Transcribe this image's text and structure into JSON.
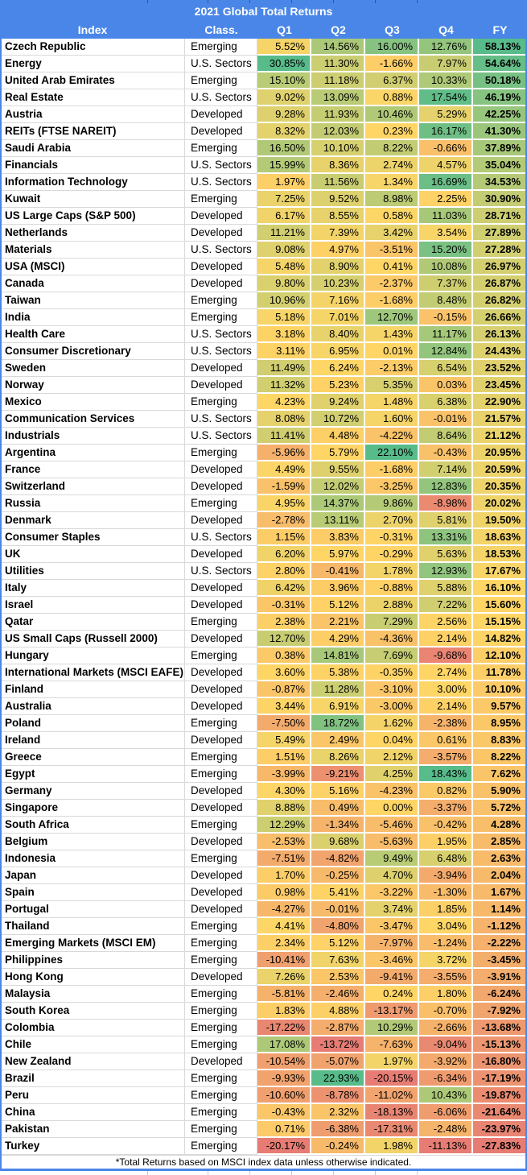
{
  "title": "2021 Global Total Returns",
  "footnote": "*Total Returns based on MSCI index data unless otherwise indicated.",
  "columns": [
    "Index",
    "Class.",
    "Q1",
    "Q2",
    "Q3",
    "Q4",
    "FY"
  ],
  "colors": {
    "header_bg": "#4A86E8",
    "header_text": "#FFFFFF",
    "table_border": "#4A86E8",
    "grid_line": "#D9D9D9",
    "scale_min_color": "#E67C73",
    "scale_mid_color": "#FFD666",
    "scale_max_color": "#57BB8A",
    "cell_text": "#000000"
  },
  "chart_data": {
    "type": "heatmap",
    "description": "Table of 2021 total returns by index, colored per-column on a red-yellow-green scale (min / median / max).",
    "columns": [
      "Index",
      "Class.",
      "Q1",
      "Q2",
      "Q3",
      "Q4",
      "FY"
    ],
    "value_format": "percent_2dp",
    "rows": [
      [
        "Czech Republic",
        "Emerging",
        5.52,
        14.56,
        16.0,
        12.76,
        58.13
      ],
      [
        "Energy",
        "U.S. Sectors",
        30.85,
        11.3,
        -1.66,
        7.97,
        54.64
      ],
      [
        "United Arab Emirates",
        "Emerging",
        15.1,
        11.18,
        6.37,
        10.33,
        50.18
      ],
      [
        "Real Estate",
        "U.S. Sectors",
        9.02,
        13.09,
        0.88,
        17.54,
        46.19
      ],
      [
        "Austria",
        "Developed",
        9.28,
        11.93,
        10.46,
        5.29,
        42.25
      ],
      [
        "REITs (FTSE NAREIT)",
        "Developed",
        8.32,
        12.03,
        0.23,
        16.17,
        41.3
      ],
      [
        "Saudi Arabia",
        "Emerging",
        16.5,
        10.1,
        8.22,
        -0.66,
        37.89
      ],
      [
        "Financials",
        "U.S. Sectors",
        15.99,
        8.36,
        2.74,
        4.57,
        35.04
      ],
      [
        "Information Technology",
        "U.S. Sectors",
        1.97,
        11.56,
        1.34,
        16.69,
        34.53
      ],
      [
        "Kuwait",
        "Emerging",
        7.25,
        9.52,
        8.98,
        2.25,
        30.9
      ],
      [
        "US Large Caps (S&P 500)",
        "Developed",
        6.17,
        8.55,
        0.58,
        11.03,
        28.71
      ],
      [
        "Netherlands",
        "Developed",
        11.21,
        7.39,
        3.42,
        3.54,
        27.89
      ],
      [
        "Materials",
        "U.S. Sectors",
        9.08,
        4.97,
        -3.51,
        15.2,
        27.28
      ],
      [
        "USA (MSCI)",
        "Developed",
        5.48,
        8.9,
        0.41,
        10.08,
        26.97
      ],
      [
        "Canada",
        "Developed",
        9.8,
        10.23,
        -2.37,
        7.37,
        26.87
      ],
      [
        "Taiwan",
        "Emerging",
        10.96,
        7.16,
        -1.68,
        8.48,
        26.82
      ],
      [
        "India",
        "Emerging",
        5.18,
        7.01,
        12.7,
        -0.15,
        26.66
      ],
      [
        "Health Care",
        "U.S. Sectors",
        3.18,
        8.4,
        1.43,
        11.17,
        26.13
      ],
      [
        "Consumer Discretionary",
        "U.S. Sectors",
        3.11,
        6.95,
        0.01,
        12.84,
        24.43
      ],
      [
        "Sweden",
        "Developed",
        11.49,
        6.24,
        -2.13,
        6.54,
        23.52
      ],
      [
        "Norway",
        "Developed",
        11.32,
        5.23,
        5.35,
        0.03,
        23.45
      ],
      [
        "Mexico",
        "Emerging",
        4.23,
        9.24,
        1.48,
        6.38,
        22.9
      ],
      [
        "Communication Services",
        "U.S. Sectors",
        8.08,
        10.72,
        1.6,
        -0.01,
        21.57
      ],
      [
        "Industrials",
        "U.S. Sectors",
        11.41,
        4.48,
        -4.22,
        8.64,
        21.12
      ],
      [
        "Argentina",
        "Emerging",
        -5.96,
        5.79,
        22.1,
        -0.43,
        20.95
      ],
      [
        "France",
        "Developed",
        4.49,
        9.55,
        -1.68,
        7.14,
        20.59
      ],
      [
        "Switzerland",
        "Developed",
        -1.59,
        12.02,
        -3.25,
        12.83,
        20.35
      ],
      [
        "Russia",
        "Emerging",
        4.95,
        14.37,
        9.86,
        -8.98,
        20.02
      ],
      [
        "Denmark",
        "Developed",
        -2.78,
        13.11,
        2.7,
        5.81,
        19.5
      ],
      [
        "Consumer Staples",
        "U.S. Sectors",
        1.15,
        3.83,
        -0.31,
        13.31,
        18.63
      ],
      [
        "UK",
        "Developed",
        6.2,
        5.97,
        -0.29,
        5.63,
        18.53
      ],
      [
        "Utilities",
        "U.S. Sectors",
        2.8,
        -0.41,
        1.78,
        12.93,
        17.67
      ],
      [
        "Italy",
        "Developed",
        6.42,
        3.96,
        -0.88,
        5.88,
        16.1
      ],
      [
        "Israel",
        "Developed",
        -0.31,
        5.12,
        2.88,
        7.22,
        15.6
      ],
      [
        "Qatar",
        "Emerging",
        2.38,
        2.21,
        7.29,
        2.56,
        15.15
      ],
      [
        "US Small Caps (Russell 2000)",
        "Developed",
        12.7,
        4.29,
        -4.36,
        2.14,
        14.82
      ],
      [
        "Hungary",
        "Emerging",
        0.38,
        14.81,
        7.69,
        -9.68,
        12.1
      ],
      [
        "International Markets (MSCI EAFE)",
        "Developed",
        3.6,
        5.38,
        -0.35,
        2.74,
        11.78
      ],
      [
        "Finland",
        "Developed",
        -0.87,
        11.28,
        -3.1,
        3.0,
        10.1
      ],
      [
        "Australia",
        "Developed",
        3.44,
        6.91,
        -3.0,
        2.14,
        9.57
      ],
      [
        "Poland",
        "Emerging",
        -7.5,
        18.72,
        1.62,
        -2.38,
        8.95
      ],
      [
        "Ireland",
        "Developed",
        5.49,
        2.49,
        0.04,
        0.61,
        8.83
      ],
      [
        "Greece",
        "Emerging",
        1.51,
        8.26,
        2.12,
        -3.57,
        8.22
      ],
      [
        "Egypt",
        "Emerging",
        -3.99,
        -9.21,
        4.25,
        18.43,
        7.62
      ],
      [
        "Germany",
        "Developed",
        4.3,
        5.16,
        -4.23,
        0.82,
        5.9
      ],
      [
        "Singapore",
        "Developed",
        8.88,
        0.49,
        0.0,
        -3.37,
        5.72
      ],
      [
        "South Africa",
        "Emerging",
        12.29,
        -1.34,
        -5.46,
        -0.42,
        4.28
      ],
      [
        "Belgium",
        "Developed",
        -2.53,
        9.68,
        -5.63,
        1.95,
        2.85
      ],
      [
        "Indonesia",
        "Emerging",
        -7.51,
        -4.82,
        9.49,
        6.48,
        2.63
      ],
      [
        "Japan",
        "Developed",
        1.7,
        -0.25,
        4.7,
        -3.94,
        2.04
      ],
      [
        "Spain",
        "Developed",
        0.98,
        5.41,
        -3.22,
        -1.3,
        1.67
      ],
      [
        "Portugal",
        "Developed",
        -4.27,
        -0.01,
        3.74,
        1.85,
        1.14
      ],
      [
        "Thailand",
        "Emerging",
        4.41,
        -4.8,
        -3.47,
        3.04,
        -1.12
      ],
      [
        "Emerging Markets (MSCI EM)",
        "Emerging",
        2.34,
        5.12,
        -7.97,
        -1.24,
        -2.22
      ],
      [
        "Philippines",
        "Emerging",
        -10.41,
        7.63,
        -3.46,
        3.72,
        -3.45
      ],
      [
        "Hong Kong",
        "Developed",
        7.26,
        2.53,
        -9.41,
        -3.55,
        -3.91
      ],
      [
        "Malaysia",
        "Emerging",
        -5.81,
        -2.46,
        0.24,
        1.8,
        -6.24
      ],
      [
        "South Korea",
        "Emerging",
        1.83,
        4.88,
        -13.17,
        -0.7,
        -7.92
      ],
      [
        "Colombia",
        "Emerging",
        -17.22,
        -2.87,
        10.29,
        -2.66,
        -13.68
      ],
      [
        "Chile",
        "Emerging",
        17.08,
        -13.72,
        -7.63,
        -9.04,
        -15.13
      ],
      [
        "New Zealand",
        "Developed",
        -10.54,
        -5.07,
        1.97,
        -3.92,
        -16.8
      ],
      [
        "Brazil",
        "Emerging",
        -9.93,
        22.93,
        -20.15,
        -6.34,
        -17.19
      ],
      [
        "Peru",
        "Emerging",
        -10.6,
        -8.78,
        -11.02,
        10.43,
        -19.87
      ],
      [
        "China",
        "Emerging",
        -0.43,
        2.32,
        -18.13,
        -6.06,
        -21.64
      ],
      [
        "Pakistan",
        "Emerging",
        0.71,
        -6.38,
        -17.31,
        -2.48,
        -23.97
      ],
      [
        "Turkey",
        "Emerging",
        -20.17,
        -0.24,
        1.98,
        -11.13,
        -27.83
      ]
    ]
  }
}
